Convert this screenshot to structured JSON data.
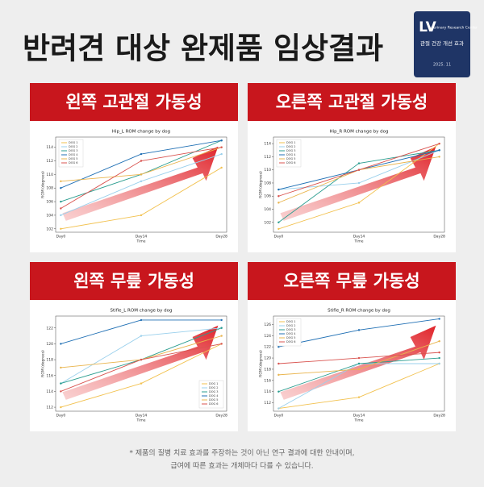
{
  "title": "반려견 대상 완제품 임상결과",
  "badge": {
    "logo": "LV",
    "org": "Veterinary Research Center",
    "claim": "관절 건강 개선 효과",
    "date": "2025. 11"
  },
  "footnote": [
    "* 제품의 질병 치료 효과를 주장하는 것이 아닌 연구 결과에 대한 안내이며,",
    "급여에 따른 효과는 개체마다 다를 수 있습니다."
  ],
  "chart_data": [
    {
      "type": "line",
      "heading": "왼쪽 고관절 가동성",
      "title": "Hip_L ROM change by dog",
      "xlabel": "Time",
      "ylabel": "ROM (degrees)",
      "categories": [
        "Day0",
        "Day14",
        "Day28"
      ],
      "ylim": [
        101.5,
        115.5
      ],
      "yticks": [
        102,
        104,
        106,
        108,
        110,
        112,
        114
      ],
      "legend": "upper left",
      "series": [
        {
          "name": "DOG 1",
          "color": "#f2c14e",
          "values": [
            102,
            104,
            111
          ]
        },
        {
          "name": "DOG 2",
          "color": "#9ad0ec",
          "values": [
            104,
            109,
            113
          ]
        },
        {
          "name": "DOG 3",
          "color": "#2a9d8f",
          "values": [
            106,
            110,
            115
          ]
        },
        {
          "name": "DOG 4",
          "color": "#1f6fb4",
          "values": [
            108,
            113,
            115
          ]
        },
        {
          "name": "DOG 5",
          "color": "#e9b44c",
          "values": [
            109,
            110,
            114
          ]
        },
        {
          "name": "DOG 6",
          "color": "#d9534f",
          "values": [
            105,
            112,
            114
          ]
        }
      ]
    },
    {
      "type": "line",
      "heading": "오른쪽 고관절 가동성",
      "title": "Hip_R ROM change by dog",
      "xlabel": "Time",
      "ylabel": "ROM (degrees)",
      "categories": [
        "Day0",
        "Day14",
        "Day28"
      ],
      "ylim": [
        100.5,
        115
      ],
      "yticks": [
        102,
        104,
        106,
        108,
        110,
        112,
        114
      ],
      "legend": "upper left",
      "series": [
        {
          "name": "DOG 1",
          "color": "#f2c14e",
          "values": [
            101,
            105,
            114
          ]
        },
        {
          "name": "DOG 2",
          "color": "#9ad0ec",
          "values": [
            107,
            108,
            113
          ]
        },
        {
          "name": "DOG 3",
          "color": "#2a9d8f",
          "values": [
            102,
            111,
            113
          ]
        },
        {
          "name": "DOG 4",
          "color": "#1f6fb4",
          "values": [
            107,
            110,
            113
          ]
        },
        {
          "name": "DOG 5",
          "color": "#e9b44c",
          "values": [
            105,
            110,
            112
          ]
        },
        {
          "name": "DOG 6",
          "color": "#d9534f",
          "values": [
            106,
            110,
            114
          ]
        }
      ]
    },
    {
      "type": "line",
      "heading": "왼쪽 무릎 가동성",
      "title": "Stifle_L ROM change by dog",
      "xlabel": "Time",
      "ylabel": "ROM (degrees)",
      "categories": [
        "Day0",
        "Day14",
        "Day28"
      ],
      "ylim": [
        111.5,
        123.5
      ],
      "yticks": [
        112,
        114,
        116,
        118,
        120,
        122
      ],
      "legend": "lower right",
      "series": [
        {
          "name": "DOG 1",
          "color": "#f2c14e",
          "values": [
            112,
            115,
            120
          ]
        },
        {
          "name": "DOG 2",
          "color": "#9ad0ec",
          "values": [
            115,
            121,
            122
          ]
        },
        {
          "name": "DOG 3",
          "color": "#2a9d8f",
          "values": [
            115,
            118,
            122
          ]
        },
        {
          "name": "DOG 4",
          "color": "#1f6fb4",
          "values": [
            120,
            123,
            123
          ]
        },
        {
          "name": "DOG 5",
          "color": "#e9b44c",
          "values": [
            117,
            118,
            121
          ]
        },
        {
          "name": "DOG 6",
          "color": "#d9534f",
          "values": [
            114,
            118,
            120
          ]
        }
      ]
    },
    {
      "type": "line",
      "heading": "오른쪽 무릎 가동성",
      "title": "Stifle_R ROM change by dog",
      "xlabel": "Time",
      "ylabel": "ROM (degrees)",
      "categories": [
        "Day0",
        "Day14",
        "Day28"
      ],
      "ylim": [
        110.5,
        127.5
      ],
      "yticks": [
        112,
        114,
        116,
        118,
        120,
        122,
        124,
        126
      ],
      "legend": "upper left",
      "series": [
        {
          "name": "DOG 1",
          "color": "#f2c14e",
          "values": [
            111,
            113,
            119
          ]
        },
        {
          "name": "DOG 2",
          "color": "#9ad0ec",
          "values": [
            111,
            119,
            119
          ]
        },
        {
          "name": "DOG 3",
          "color": "#2a9d8f",
          "values": [
            114,
            119,
            120
          ]
        },
        {
          "name": "DOG 4",
          "color": "#1f6fb4",
          "values": [
            122,
            125,
            127
          ]
        },
        {
          "name": "DOG 5",
          "color": "#e9b44c",
          "values": [
            117,
            118,
            123
          ]
        },
        {
          "name": "DOG 6",
          "color": "#d9534f",
          "values": [
            119,
            120,
            121
          ]
        }
      ]
    }
  ]
}
